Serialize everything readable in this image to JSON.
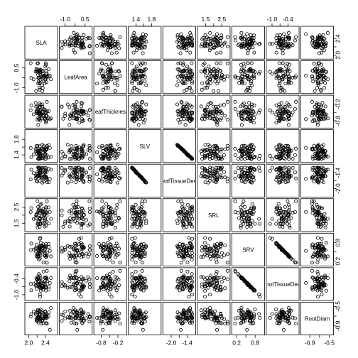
{
  "chart_data": {
    "type": "scatter",
    "variables": [
      "SLA",
      "LeafArea",
      "LeafThickness",
      "SLV",
      "LeafTissueDens",
      "SRL",
      "SRV",
      "RootTissueDens",
      "RootDiam"
    ],
    "diagonal_labels": [
      "SLA",
      "LeafArea",
      "LeafThickness",
      "SLV",
      "LeafTissueDens",
      "SRL",
      "SRV",
      "RootTissueDens",
      "RootDiam"
    ],
    "ranges": [
      [
        1.95,
        2.65
      ],
      [
        -1.3,
        0.9
      ],
      [
        -1.0,
        0.05
      ],
      [
        1.25,
        2.0
      ],
      [
        -2.25,
        -1.15
      ],
      [
        1.1,
        2.9
      ],
      [
        0.1,
        1.05
      ],
      [
        -1.15,
        -0.05
      ],
      [
        -1.05,
        -0.45
      ]
    ],
    "axis_ticks": {
      "bottom": [
        {
          "var": 0,
          "ticks": [
            "2.0",
            "2.4"
          ]
        },
        {
          "var": 2,
          "ticks": [
            "-0.8",
            "-0.2"
          ]
        },
        {
          "var": 4,
          "ticks": [
            "-2.0",
            "-1.4"
          ]
        },
        {
          "var": 6,
          "ticks": [
            "0.2",
            "0.8"
          ]
        },
        {
          "var": 8,
          "ticks": [
            "-0.9",
            "-0.5"
          ]
        }
      ],
      "top": [
        {
          "var": 1,
          "ticks": [
            "-1.0",
            "0.5"
          ]
        },
        {
          "var": 3,
          "ticks": [
            "1.4",
            "1.8"
          ]
        },
        {
          "var": 5,
          "ticks": [
            "1.5",
            "2.5"
          ]
        },
        {
          "var": 7,
          "ticks": [
            "-1.0",
            "-0.4"
          ]
        }
      ],
      "left": [
        {
          "var": 1,
          "ticks": [
            "-1.0",
            "0.5"
          ]
        },
        {
          "var": 3,
          "ticks": [
            "1.4",
            "1.8"
          ]
        },
        {
          "var": 5,
          "ticks": [
            "1.5",
            "2.5"
          ]
        },
        {
          "var": 7,
          "ticks": [
            "-1.0",
            "-0.4"
          ]
        }
      ],
      "right": [
        {
          "var": 0,
          "ticks": [
            "2.0",
            "2.4"
          ]
        },
        {
          "var": 2,
          "ticks": [
            "-0.8",
            "-0.2"
          ]
        },
        {
          "var": 4,
          "ticks": [
            "-2.0",
            "-1.4"
          ]
        },
        {
          "var": 6,
          "ticks": [
            "0.2",
            "0.8"
          ]
        },
        {
          "var": 8,
          "ticks": [
            "-0.9",
            "-0.5"
          ]
        }
      ]
    },
    "n_observations": 60,
    "point_style": "open-circle",
    "color": "#000000",
    "grid": false,
    "legend": "none"
  }
}
